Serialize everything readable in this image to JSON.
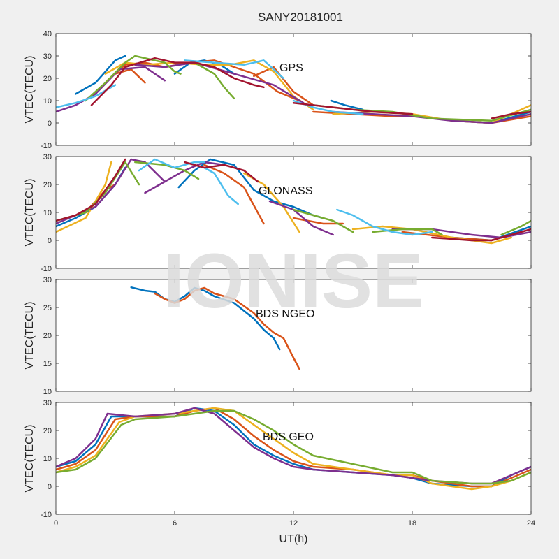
{
  "title": "SANY20181001",
  "watermark": "IONISE",
  "xlabel": "UT(h)",
  "chart_data": [
    {
      "type": "line",
      "label": "GPS",
      "ylabel": "VTEC(TECU)",
      "xlim": [
        0,
        24
      ],
      "ylim": [
        -10,
        40
      ],
      "xticks": [
        0,
        6,
        12,
        18,
        24
      ],
      "yticks": [
        -10,
        0,
        10,
        20,
        30,
        40
      ],
      "series": [
        {
          "color": "#0072BD",
          "x": [
            1.0,
            2.0,
            3.0,
            3.5
          ],
          "y": [
            13,
            18,
            28,
            30
          ]
        },
        {
          "color": "#0072BD",
          "x": [
            6.0,
            6.8,
            7.5,
            8.3,
            9.0
          ],
          "y": [
            22,
            27,
            28,
            26,
            22
          ]
        },
        {
          "color": "#0072BD",
          "x": [
            13.9,
            14.6,
            15.5
          ],
          "y": [
            10,
            8,
            6
          ]
        },
        {
          "color": "#0072BD",
          "x": [
            20.0,
            22.0,
            24.0
          ],
          "y": [
            1,
            0,
            5
          ]
        },
        {
          "color": "#D95319",
          "x": [
            2.6,
            3.5,
            4.5,
            5.5,
            6.8,
            8.0,
            9.0,
            10.0,
            11.2,
            12.3
          ],
          "y": [
            19,
            26,
            27,
            25,
            27,
            28,
            25,
            22,
            14,
            10
          ]
        },
        {
          "color": "#D95319",
          "x": [
            10.0,
            11.0,
            12.0,
            13.0
          ],
          "y": [
            21,
            25,
            14,
            8
          ]
        },
        {
          "color": "#D95319",
          "x": [
            3.0,
            3.8,
            4.5
          ],
          "y": [
            22,
            24,
            18
          ]
        },
        {
          "color": "#D95319",
          "x": [
            13.0,
            15.0,
            17.0,
            18.5,
            20.0,
            22.0,
            24.0
          ],
          "y": [
            5,
            4,
            3,
            3,
            1,
            0,
            3
          ]
        },
        {
          "color": "#EDB120",
          "x": [
            2.5,
            3.5,
            4.5,
            6.0,
            7.5,
            8.8,
            10.0,
            11.0,
            12.0,
            13.0
          ],
          "y": [
            22,
            27,
            26,
            27,
            26,
            26,
            28,
            23,
            12,
            6
          ]
        },
        {
          "color": "#EDB120",
          "x": [
            14.0,
            16.0,
            18.0,
            20.0,
            22.0,
            24.0
          ],
          "y": [
            4,
            5,
            4,
            1,
            0,
            8
          ]
        },
        {
          "color": "#7E2F8E",
          "x": [
            0.0,
            1.0,
            2.0,
            3.2,
            4.5,
            5.5
          ],
          "y": [
            5,
            8,
            13,
            24,
            25,
            19
          ]
        },
        {
          "color": "#7E2F8E",
          "x": [
            4.0,
            5.5,
            7.0,
            9.0,
            11.0,
            12.5
          ],
          "y": [
            26,
            25,
            27,
            22,
            17,
            9
          ]
        },
        {
          "color": "#7E2F8E",
          "x": [
            14.0,
            16.0,
            18.0,
            20.0,
            22.0,
            24.0
          ],
          "y": [
            5,
            4,
            3,
            1,
            0,
            4
          ]
        },
        {
          "color": "#77AC30",
          "x": [
            1.5,
            2.5,
            3.5,
            4.0,
            5.5,
            6.0,
            6.3
          ],
          "y": [
            10,
            18,
            27,
            30,
            27,
            23,
            22
          ]
        },
        {
          "color": "#77AC30",
          "x": [
            7.0,
            8.0,
            8.5,
            9.0
          ],
          "y": [
            27,
            22,
            16,
            11
          ]
        },
        {
          "color": "#77AC30",
          "x": [
            13.0,
            15.0,
            17.0,
            19.0,
            22.0,
            24.0
          ],
          "y": [
            8,
            6,
            5,
            2,
            1,
            6
          ]
        },
        {
          "color": "#4DBEEE",
          "x": [
            0.0,
            1.0,
            2.0,
            3.0
          ],
          "y": [
            7,
            9,
            12,
            17
          ]
        },
        {
          "color": "#4DBEEE",
          "x": [
            6.5,
            8.0,
            9.5,
            10.5,
            11.5
          ],
          "y": [
            28,
            27,
            26,
            28,
            20
          ]
        },
        {
          "color": "#4DBEEE",
          "x": [
            12.0,
            13.0,
            14.0,
            15.5
          ],
          "y": [
            10,
            7,
            5,
            4
          ]
        },
        {
          "color": "#A2142F",
          "x": [
            1.8,
            2.8,
            3.5,
            5.0,
            6.0,
            7.0,
            8.0,
            9.0,
            10.0,
            10.5
          ],
          "y": [
            8,
            17,
            25,
            29,
            27,
            27,
            25,
            20,
            17,
            16
          ]
        },
        {
          "color": "#A2142F",
          "x": [
            12.0,
            14.0,
            16.0,
            18.0
          ],
          "y": [
            9,
            7,
            5,
            4
          ]
        },
        {
          "color": "#A2142F",
          "x": [
            22.0,
            23.0,
            24.0
          ],
          "y": [
            2,
            4,
            5
          ]
        }
      ]
    },
    {
      "type": "line",
      "label": "GLONASS",
      "ylabel": "VTEC(TECU)",
      "xlim": [
        0,
        24
      ],
      "ylim": [
        -10,
        30
      ],
      "xticks": [
        0,
        6,
        12,
        18,
        24
      ],
      "yticks": [
        -10,
        0,
        10,
        20,
        30
      ],
      "series": [
        {
          "color": "#0072BD",
          "x": [
            0.0,
            1.0,
            2.0,
            3.0,
            3.5
          ],
          "y": [
            5,
            8,
            12,
            20,
            26
          ]
        },
        {
          "color": "#0072BD",
          "x": [
            6.2,
            7.0,
            7.8,
            9.0,
            10.0,
            11.0,
            12.0,
            13.0,
            13.5
          ],
          "y": [
            19,
            25,
            29,
            27,
            18,
            14,
            12,
            9,
            8
          ]
        },
        {
          "color": "#0072BD",
          "x": [
            20.0,
            22.0,
            24.0
          ],
          "y": [
            1,
            0,
            5
          ]
        },
        {
          "color": "#D95319",
          "x": [
            1.5,
            2.5,
            3.0
          ],
          "y": [
            10,
            18,
            20
          ]
        },
        {
          "color": "#D95319",
          "x": [
            7.5,
            8.5,
            9.5,
            10.5
          ],
          "y": [
            27,
            24,
            19,
            6
          ]
        },
        {
          "color": "#D95319",
          "x": [
            12.0,
            13.5,
            14.5
          ],
          "y": [
            8,
            6,
            6
          ]
        },
        {
          "color": "#D95319",
          "x": [
            17.5,
            20.0,
            22.0,
            24.0
          ],
          "y": [
            3,
            1,
            0,
            4
          ]
        },
        {
          "color": "#EDB120",
          "x": [
            0.0,
            1.5,
            2.5,
            2.8
          ],
          "y": [
            3,
            8,
            20,
            28
          ]
        },
        {
          "color": "#EDB120",
          "x": [
            9.5,
            10.5,
            11.5,
            12.3
          ],
          "y": [
            24,
            20,
            12,
            3
          ]
        },
        {
          "color": "#EDB120",
          "x": [
            15.0,
            16.5,
            18.0,
            20.0,
            22.0,
            23.0
          ],
          "y": [
            4,
            5,
            4,
            1,
            -1,
            1
          ]
        },
        {
          "color": "#7E2F8E",
          "x": [
            0.0,
            1.0,
            2.0,
            3.0,
            3.8,
            4.5,
            5.5
          ],
          "y": [
            6,
            9,
            12,
            20,
            29,
            28,
            21
          ]
        },
        {
          "color": "#7E2F8E",
          "x": [
            4.5,
            5.5,
            6.5,
            7.5,
            8.5
          ],
          "y": [
            17,
            21,
            25,
            28,
            27
          ]
        },
        {
          "color": "#7E2F8E",
          "x": [
            10.8,
            12.0,
            13.0,
            14.0
          ],
          "y": [
            14,
            11,
            5,
            2
          ]
        },
        {
          "color": "#7E2F8E",
          "x": [
            17.0,
            19.0,
            21.0,
            22.5,
            24.0
          ],
          "y": [
            4,
            4,
            2,
            1,
            3
          ]
        },
        {
          "color": "#77AC30",
          "x": [
            0.0,
            1.5,
            2.5,
            3.5,
            4.2
          ],
          "y": [
            7,
            10,
            17,
            28,
            20
          ]
        },
        {
          "color": "#77AC30",
          "x": [
            4.0,
            5.5,
            6.5,
            7.2
          ],
          "y": [
            28,
            27,
            25,
            22
          ]
        },
        {
          "color": "#77AC30",
          "x": [
            12.0,
            13.0,
            14.0,
            15.0
          ],
          "y": [
            11,
            9,
            7,
            3
          ]
        },
        {
          "color": "#77AC30",
          "x": [
            16.0,
            17.5,
            19.0,
            19.5
          ],
          "y": [
            3,
            4,
            4,
            2
          ]
        },
        {
          "color": "#77AC30",
          "x": [
            22.5,
            23.5,
            24.0
          ],
          "y": [
            2,
            5,
            7
          ]
        },
        {
          "color": "#4DBEEE",
          "x": [
            4.2,
            5.0,
            6.0,
            7.0,
            7.5
          ],
          "y": [
            25,
            29,
            26,
            28,
            28
          ]
        },
        {
          "color": "#4DBEEE",
          "x": [
            7.5,
            8.0,
            8.7,
            9.2
          ],
          "y": [
            26,
            24,
            16,
            13
          ]
        },
        {
          "color": "#4DBEEE",
          "x": [
            14.2,
            15.0,
            16.0,
            17.0,
            18.0,
            19.0
          ],
          "y": [
            11,
            9,
            5,
            3,
            2,
            3
          ]
        },
        {
          "color": "#A2142F",
          "x": [
            0.0,
            1.0,
            2.0,
            3.0,
            3.5
          ],
          "y": [
            7,
            9,
            13,
            23,
            29
          ]
        },
        {
          "color": "#A2142F",
          "x": [
            6.5,
            7.5,
            8.5,
            9.5,
            10.2
          ],
          "y": [
            28,
            26,
            27,
            25,
            21
          ]
        },
        {
          "color": "#A2142F",
          "x": [
            19.0,
            21.0,
            22.0,
            23.0,
            24.0
          ],
          "y": [
            1,
            0,
            0,
            2,
            4
          ]
        }
      ]
    },
    {
      "type": "line",
      "label": "BDS NGEO",
      "ylabel": "VTEC(TECU)",
      "xlim": [
        0,
        24
      ],
      "ylim": [
        10,
        30
      ],
      "xticks": [
        0,
        6,
        12,
        18,
        24
      ],
      "yticks": [
        10,
        15,
        20,
        25,
        30
      ],
      "series": [
        {
          "color": "#0072BD",
          "x": [
            3.8,
            4.5,
            5.0,
            5.5,
            6.0,
            6.5,
            7.0,
            7.5,
            8.0,
            9.0,
            10.0,
            10.5,
            11.0,
            11.3
          ],
          "y": [
            28.6,
            28.0,
            27.8,
            26.5,
            26.0,
            27.0,
            28.5,
            28.0,
            27.0,
            25.8,
            23.0,
            21.0,
            19.5,
            17.5
          ]
        },
        {
          "color": "#D95319",
          "x": [
            5.0,
            5.5,
            6.0,
            6.5,
            7.0,
            7.5,
            8.0,
            9.0,
            10.0,
            10.5,
            11.0,
            11.5,
            12.0,
            12.3
          ],
          "y": [
            27.5,
            26.5,
            25.8,
            26.5,
            28.0,
            28.5,
            27.5,
            26.5,
            24.0,
            22.0,
            20.5,
            19.5,
            16.0,
            14.0
          ]
        }
      ]
    },
    {
      "type": "line",
      "label": "BDS GEO",
      "ylabel": "VTEC(TECU)",
      "xlim": [
        0,
        24
      ],
      "ylim": [
        -10,
        30
      ],
      "xticks": [
        0,
        6,
        12,
        18,
        24
      ],
      "yticks": [
        -10,
        0,
        10,
        20,
        30
      ],
      "series": [
        {
          "color": "#0072BD",
          "x": [
            0,
            1,
            2,
            2.8,
            4,
            6,
            7,
            8,
            9,
            10,
            11,
            12,
            13,
            15,
            17,
            18,
            19,
            21,
            22,
            23,
            24
          ],
          "y": [
            7,
            9,
            15,
            25,
            25,
            25,
            28,
            27,
            22,
            15,
            11,
            8,
            6,
            5,
            4,
            3,
            1,
            0,
            0,
            4,
            7
          ]
        },
        {
          "color": "#D95319",
          "x": [
            0,
            1,
            2,
            3.0,
            4,
            6,
            7,
            8,
            9,
            10,
            11,
            12,
            13,
            15,
            17,
            18,
            19,
            21,
            22,
            23,
            24
          ],
          "y": [
            6,
            8,
            13,
            24,
            25,
            25,
            27,
            28,
            24,
            18,
            13,
            9,
            7,
            6,
            4,
            4,
            2,
            0,
            0,
            3,
            6
          ]
        },
        {
          "color": "#EDB120",
          "x": [
            0,
            1,
            2,
            3.2,
            4,
            6,
            7,
            8,
            9,
            10,
            11,
            12,
            13,
            15,
            17,
            18,
            19,
            21,
            22,
            23,
            24
          ],
          "y": [
            5,
            7,
            11,
            23,
            25,
            26,
            27,
            28,
            27,
            22,
            17,
            12,
            8,
            6,
            4,
            4,
            1,
            -1,
            0,
            2,
            5
          ]
        },
        {
          "color": "#7E2F8E",
          "x": [
            0,
            1,
            2,
            2.6,
            4,
            6,
            7,
            8,
            9,
            10,
            11,
            12,
            13,
            15,
            17,
            18,
            19,
            21,
            22,
            23,
            24
          ],
          "y": [
            7,
            10,
            17,
            26,
            25,
            26,
            28,
            26,
            20,
            14,
            10,
            7,
            6,
            5,
            4,
            3,
            2,
            1,
            1,
            4,
            7
          ]
        },
        {
          "color": "#77AC30",
          "x": [
            0,
            1,
            2,
            3.3,
            4,
            6,
            7,
            8,
            9,
            10,
            11,
            12,
            13,
            15,
            17,
            18,
            19,
            21,
            22,
            23,
            24
          ],
          "y": [
            5,
            6,
            10,
            22,
            24,
            25,
            26,
            27,
            27,
            24,
            20,
            15,
            11,
            8,
            5,
            5,
            2,
            1,
            1,
            2,
            5
          ]
        }
      ]
    }
  ]
}
